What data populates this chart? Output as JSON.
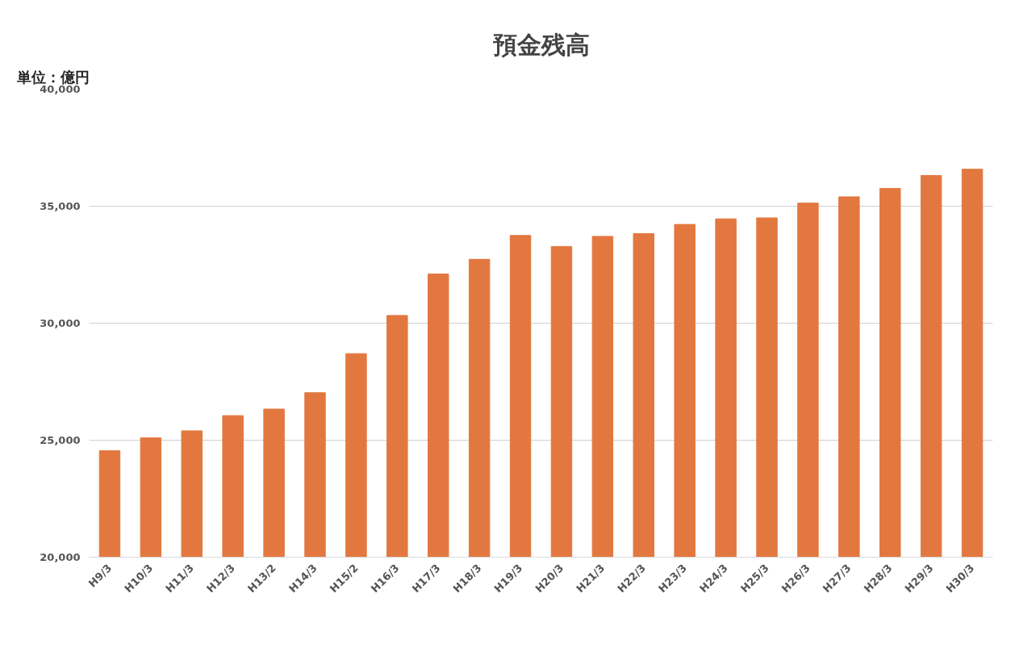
{
  "chart_data": {
    "type": "bar",
    "title": "預金残高",
    "annotations": [
      "単位：億円"
    ],
    "categories": [
      "H9/3",
      "H10/3",
      "H11/3",
      "H12/3",
      "H13/2",
      "H14/3",
      "H15/2",
      "H16/3",
      "H17/3",
      "H18/3",
      "H19/3",
      "H20/3",
      "H21/3",
      "H22/3",
      "H23/3",
      "H24/3",
      "H25/3",
      "H26/3",
      "H27/3",
      "H28/3",
      "H29/3",
      "H30/3"
    ],
    "values": [
      24550,
      25100,
      25400,
      26050,
      26330,
      27030,
      28700,
      30330,
      32100,
      32730,
      33750,
      33280,
      33710,
      33830,
      34220,
      34460,
      34500,
      35130,
      35400,
      35760,
      36310,
      36580
    ],
    "color": "#e2783f",
    "ylim": [
      20000,
      40000
    ],
    "yticks": [
      {
        "value": 20000,
        "label": "20,000"
      },
      {
        "value": 25000,
        "label": "25,000"
      },
      {
        "value": 30000,
        "label": "30,000"
      },
      {
        "value": 35000,
        "label": "35,000"
      },
      {
        "value": 40000,
        "label": "40,000"
      }
    ],
    "grid": "y"
  }
}
